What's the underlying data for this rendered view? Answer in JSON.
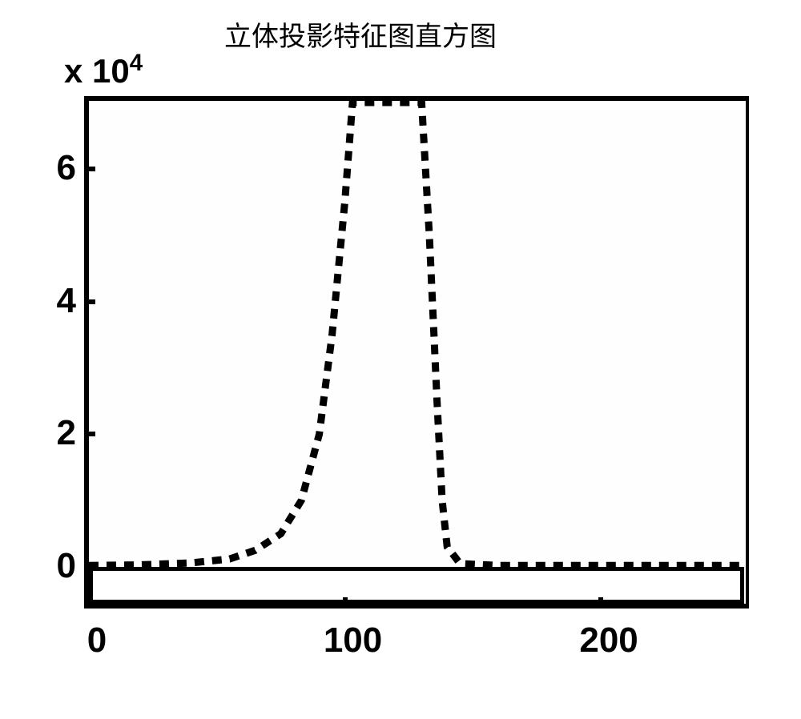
{
  "chart": {
    "type": "histogram",
    "title": "立体投影特征图直方图",
    "title_fontsize": 34,
    "exponent_label": "x 10",
    "exponent_power": "4",
    "xlim": [
      0,
      256
    ],
    "ylim": [
      0,
      7
    ],
    "xticks": [
      0,
      100,
      200
    ],
    "yticks": [
      0,
      2,
      4,
      6
    ],
    "tick_fontsize": 44,
    "tick_fontweight": "bold",
    "line_color": "#000000",
    "line_width": 9,
    "dash_pattern": "12,10",
    "background_color": "#ffffff",
    "border_color": "#000000",
    "border_width": 6,
    "data_points": [
      {
        "x": 0,
        "y": 0.02
      },
      {
        "x": 20,
        "y": 0.03
      },
      {
        "x": 40,
        "y": 0.06
      },
      {
        "x": 55,
        "y": 0.12
      },
      {
        "x": 65,
        "y": 0.25
      },
      {
        "x": 75,
        "y": 0.5
      },
      {
        "x": 83,
        "y": 1.0
      },
      {
        "x": 90,
        "y": 2.0
      },
      {
        "x": 95,
        "y": 3.5
      },
      {
        "x": 100,
        "y": 5.5
      },
      {
        "x": 103,
        "y": 7.0
      },
      {
        "x": 130,
        "y": 7.0
      },
      {
        "x": 133,
        "y": 5.0
      },
      {
        "x": 136,
        "y": 2.5
      },
      {
        "x": 138,
        "y": 1.0
      },
      {
        "x": 140,
        "y": 0.3
      },
      {
        "x": 145,
        "y": 0.05
      },
      {
        "x": 160,
        "y": 0.02
      },
      {
        "x": 200,
        "y": 0.02
      },
      {
        "x": 256,
        "y": 0.02
      }
    ]
  }
}
